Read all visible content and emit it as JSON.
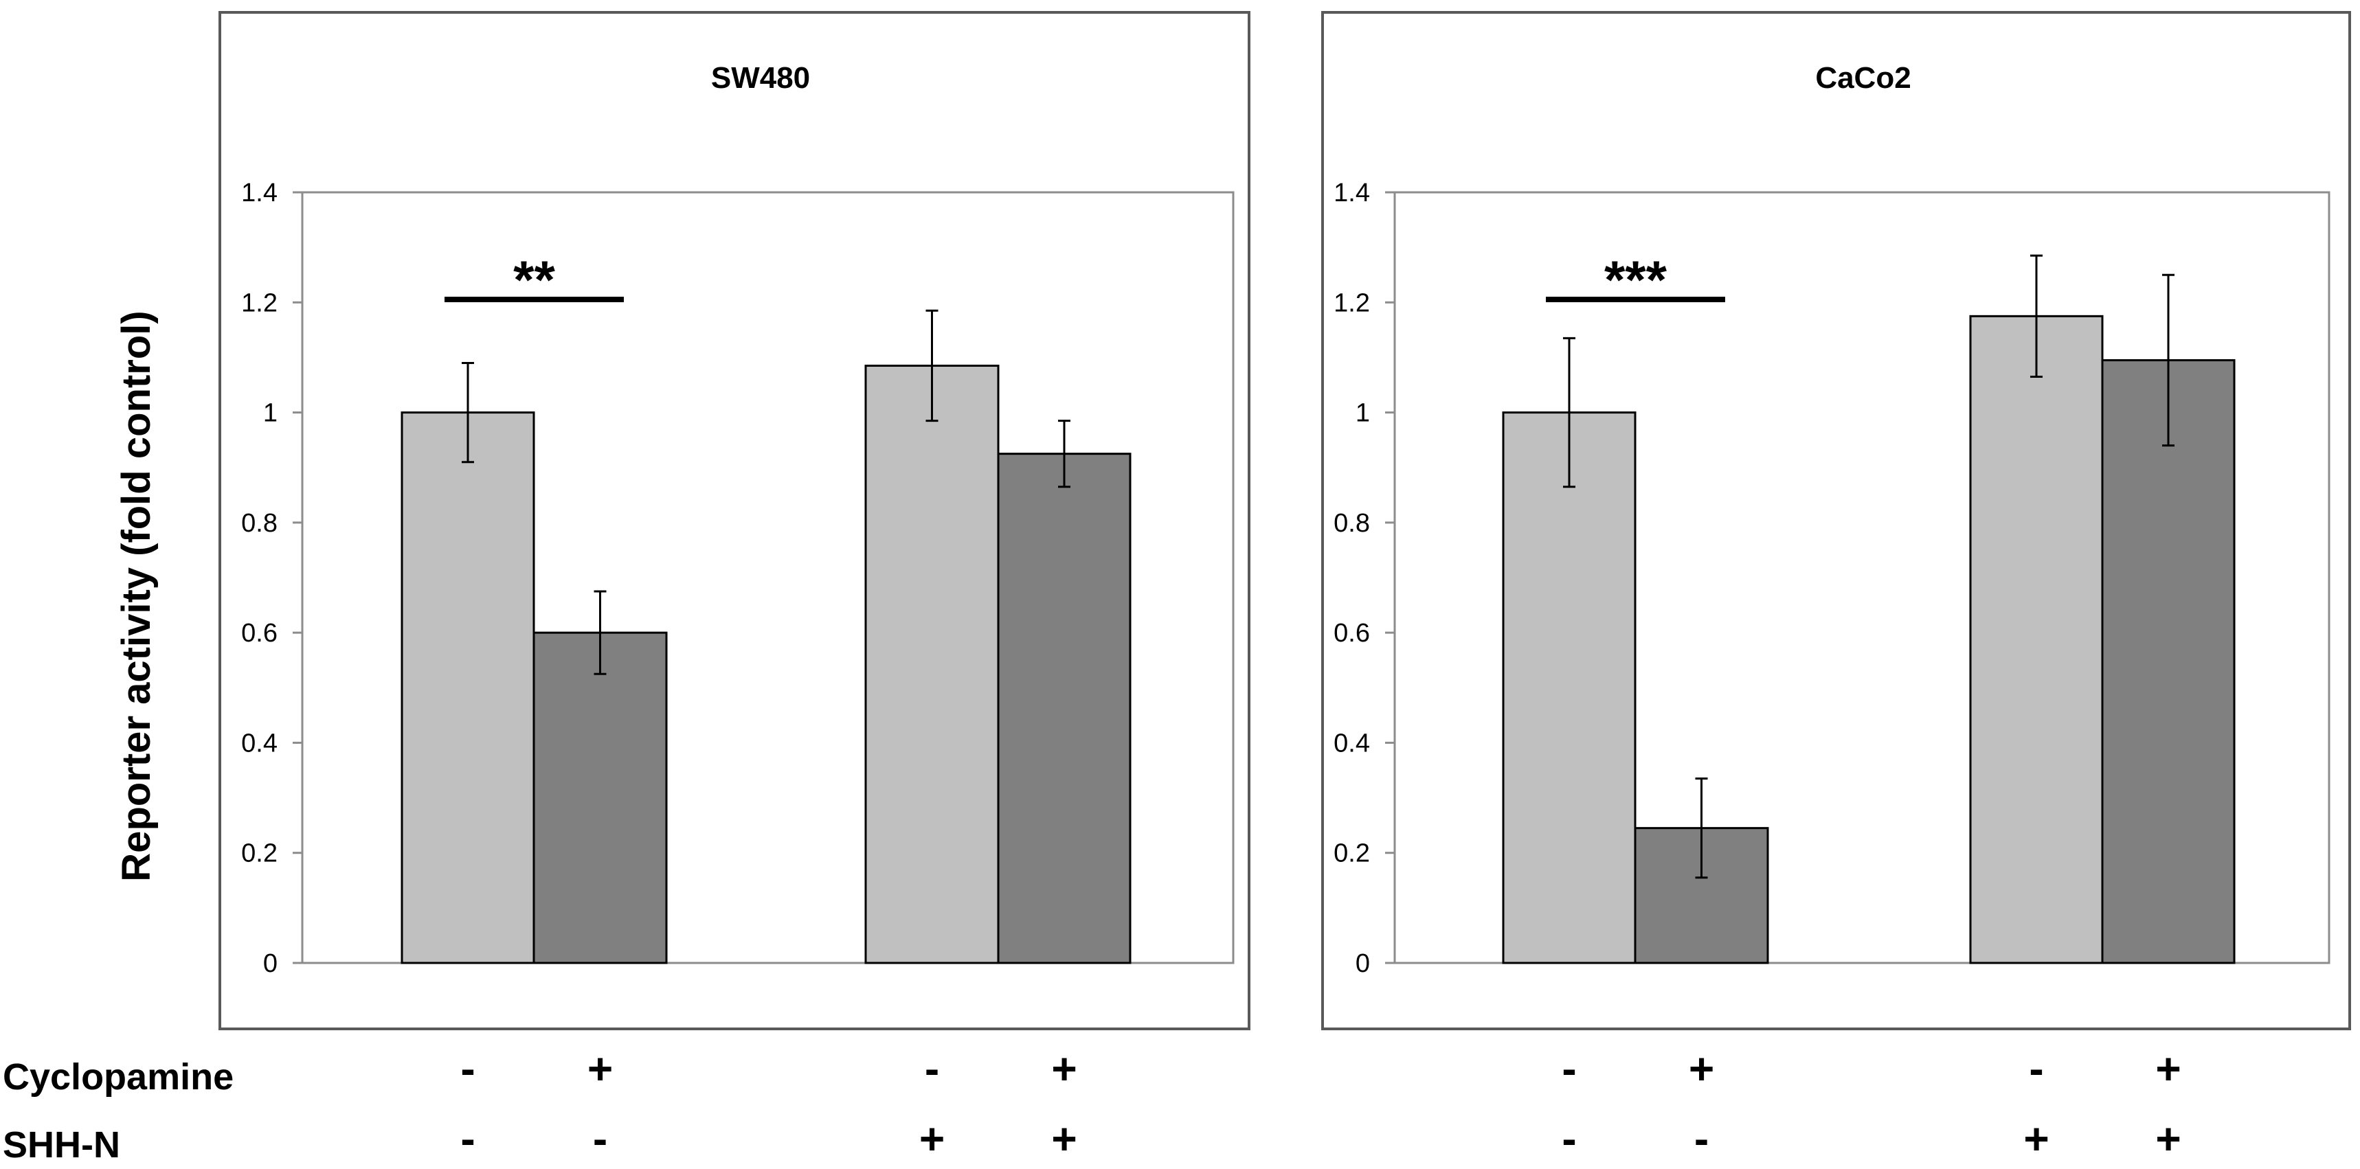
{
  "chart_data": [
    {
      "type": "bar",
      "title": "SW480",
      "ylabel": "Reporter activity (fold control)",
      "ylim": [
        0,
        1.4
      ],
      "yticks": [
        "0",
        "0.2",
        "0.4",
        "0.6",
        "0.8",
        "1",
        "1.2",
        "1.4"
      ],
      "groups": [
        {
          "bars": [
            {
              "value": 1.0,
              "error": 0.09,
              "shade": "light"
            },
            {
              "value": 0.6,
              "error": 0.075,
              "shade": "dark"
            }
          ],
          "significance": "**"
        },
        {
          "bars": [
            {
              "value": 1.085,
              "error": 0.1,
              "shade": "light"
            },
            {
              "value": 0.925,
              "error": 0.06,
              "shade": "dark"
            }
          ],
          "significance": ""
        }
      ]
    },
    {
      "type": "bar",
      "title": "CaCo2",
      "ylabel": "",
      "ylim": [
        0,
        1.4
      ],
      "yticks": [
        "0",
        "0.2",
        "0.4",
        "0.6",
        "0.8",
        "1",
        "1.2",
        "1.4"
      ],
      "groups": [
        {
          "bars": [
            {
              "value": 1.0,
              "error": 0.135,
              "shade": "light"
            },
            {
              "value": 0.245,
              "error": 0.09,
              "shade": "dark"
            }
          ],
          "significance": "***"
        },
        {
          "bars": [
            {
              "value": 1.175,
              "error": 0.11,
              "shade": "light"
            },
            {
              "value": 1.095,
              "error": 0.155,
              "shade": "dark"
            }
          ],
          "significance": ""
        }
      ]
    }
  ],
  "conditions": {
    "labels": [
      "Cyclopamine",
      "SHH-N"
    ],
    "signs": [
      [
        "-",
        "+",
        "-",
        "+"
      ],
      [
        "-",
        "-",
        "+",
        "+"
      ]
    ]
  },
  "colors": {
    "light_bar": "#c0c0c0",
    "dark_bar": "#808080",
    "frame": "#595959",
    "axis": "#8c8c8c",
    "text": "#000000"
  }
}
